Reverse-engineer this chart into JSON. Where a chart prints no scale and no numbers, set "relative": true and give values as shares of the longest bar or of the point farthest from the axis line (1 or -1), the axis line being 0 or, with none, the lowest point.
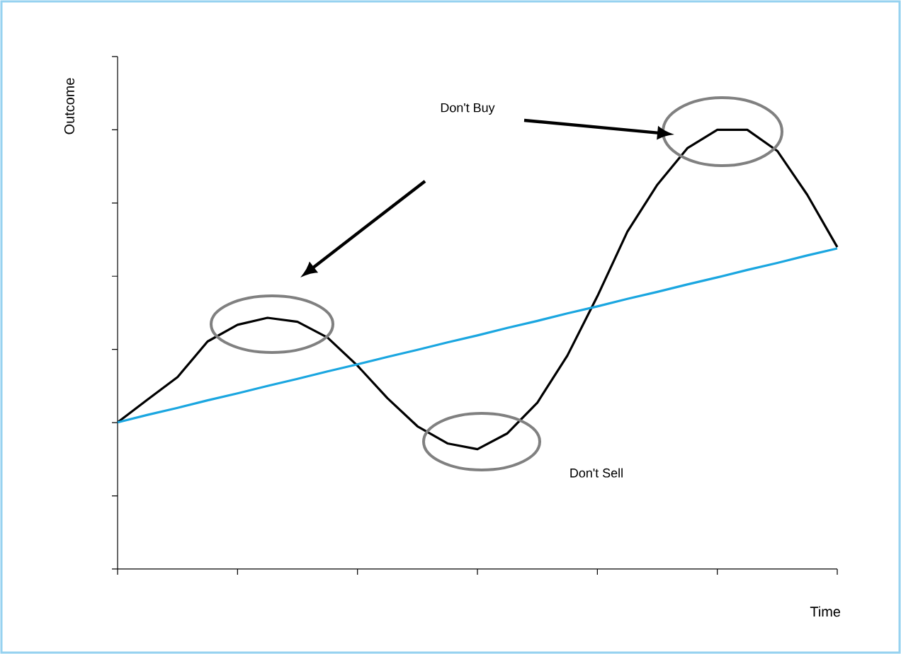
{
  "chart_data": {
    "type": "line",
    "relative": true,
    "xlabel": "Time",
    "ylabel": "Outcome",
    "annotations": [
      "Don't Buy",
      "Don't Sell"
    ],
    "categories": [
      null,
      null,
      null,
      null,
      null,
      null,
      null,
      null,
      null,
      null,
      null,
      null,
      null,
      null,
      null,
      null,
      null,
      null,
      null,
      null,
      null,
      null,
      null,
      null,
      null
    ],
    "series": [
      {
        "color": "#000000",
        "values": [
          0.334,
          0.386,
          0.437,
          0.518,
          0.556,
          0.572,
          0.563,
          0.527,
          0.463,
          0.389,
          0.325,
          0.286,
          0.273,
          0.309,
          0.379,
          0.486,
          0.621,
          0.768,
          0.875,
          0.958,
          1,
          1,
          0.952,
          0.852,
          0.733
        ]
      },
      {
        "color": "#1aa6e0",
        "values": [
          0.334,
          0.351,
          0.367,
          0.384,
          0.4,
          0.417,
          0.433,
          0.45,
          0.466,
          0.483,
          0.499,
          0.516,
          0.532,
          0.549,
          0.565,
          0.582,
          0.598,
          0.615,
          0.631,
          0.648,
          0.664,
          0.681,
          0.697,
          0.714,
          0.73
        ]
      }
    ]
  }
}
